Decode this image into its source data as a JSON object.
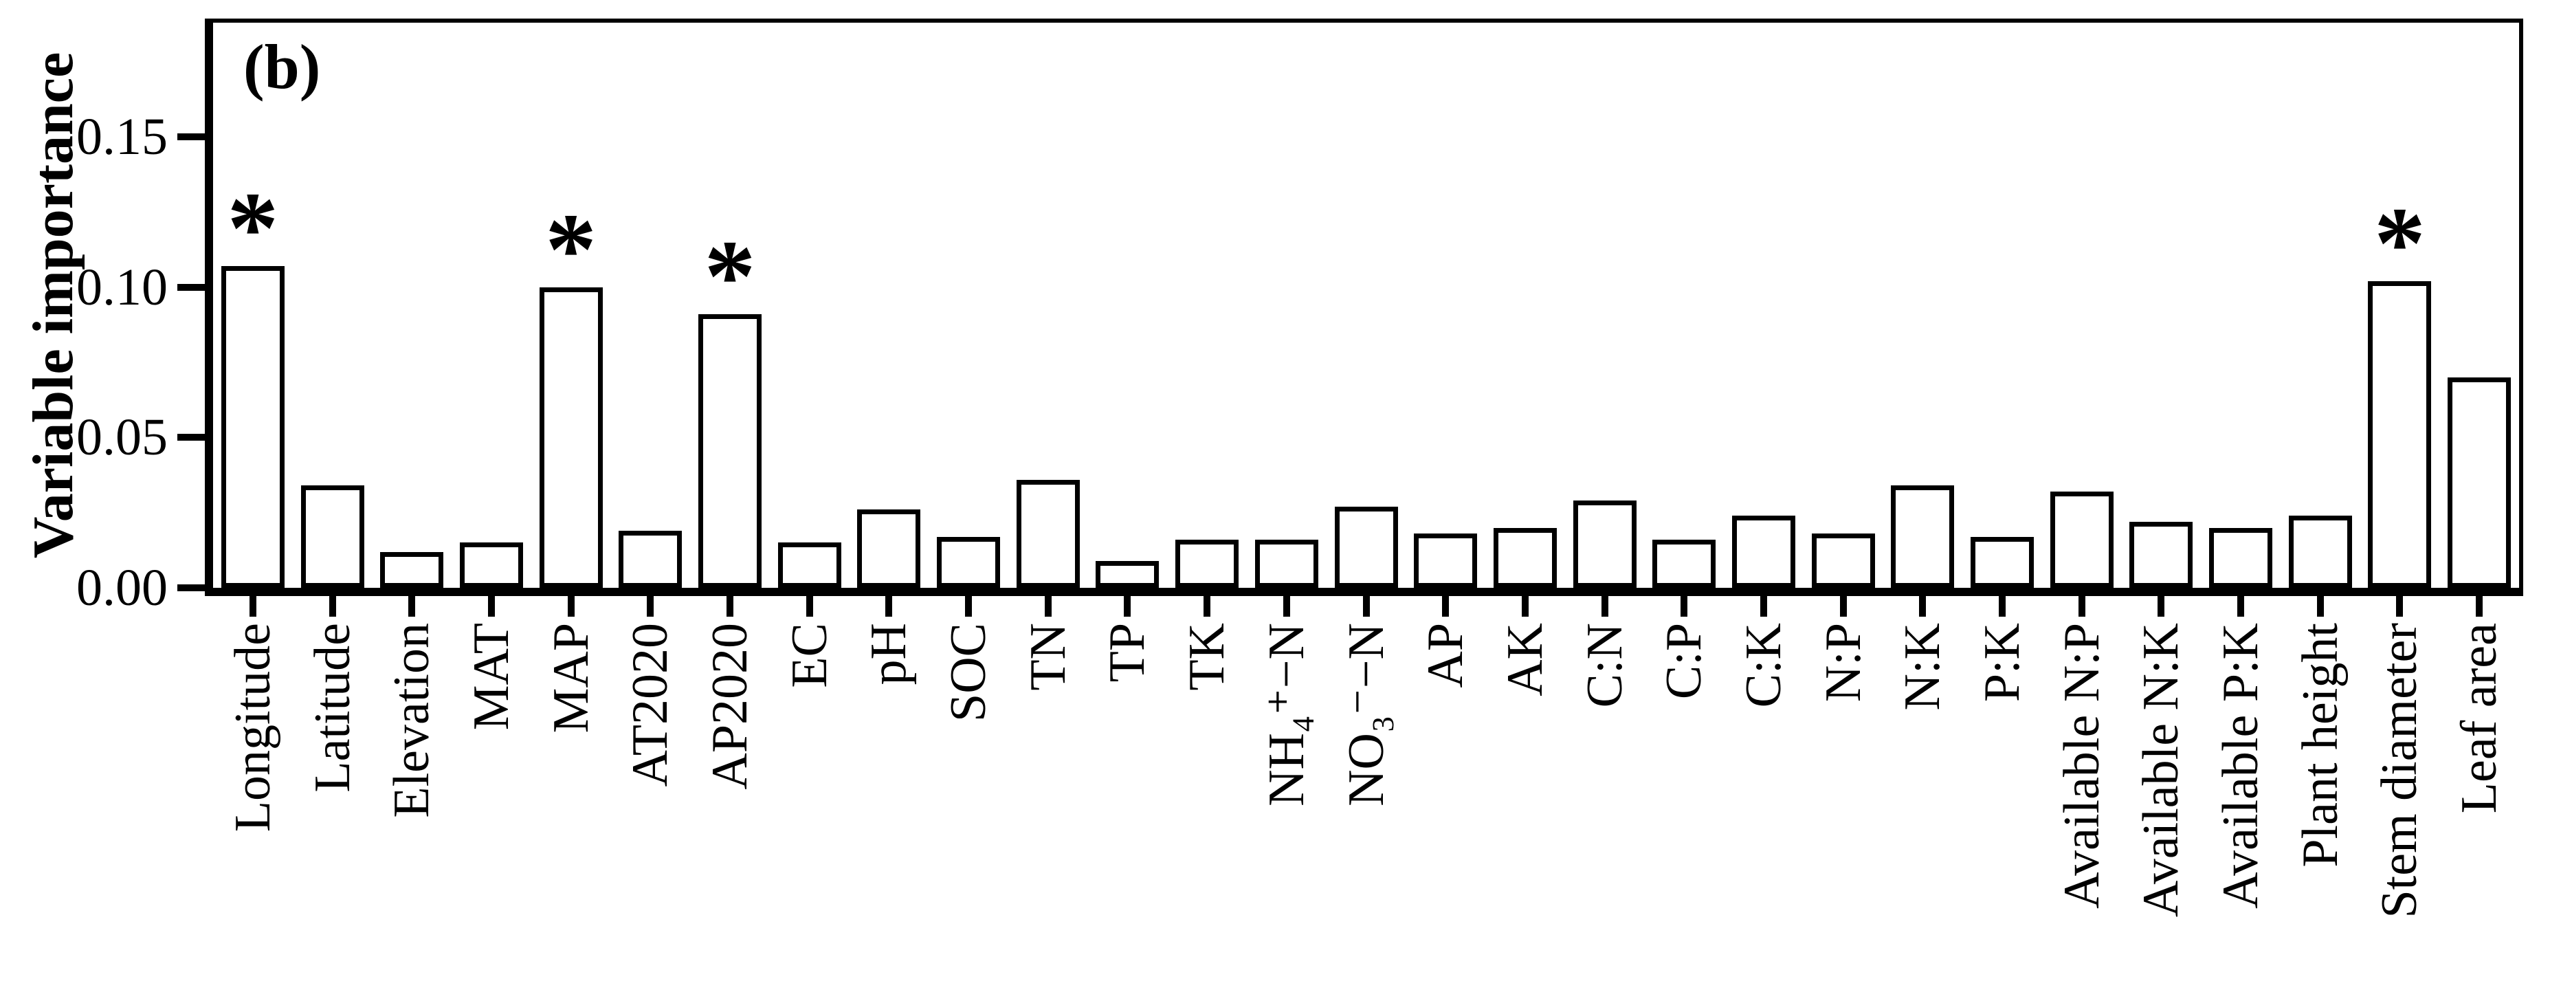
{
  "figure": {
    "panel_label": "(b)",
    "significance_marker": "*",
    "colors": {
      "foreground": "#000000",
      "background": "#ffffff",
      "bar_fill": "#ffffff",
      "bar_stroke": "#000000"
    }
  },
  "chart_data": {
    "type": "bar",
    "title": "",
    "xlabel": "",
    "ylabel": "Variable importance",
    "ylim": [
      0,
      0.188
    ],
    "yticks": [
      0.0,
      0.05,
      0.1,
      0.15
    ],
    "ytick_labels": [
      "0.00",
      "0.05",
      "0.10",
      "0.15"
    ],
    "grid": false,
    "legend": "none",
    "categories": [
      "Longitude",
      "Latitude",
      "Elevation",
      "MAT",
      "MAP",
      "AT2020",
      "AP2020",
      "EC",
      "pH",
      "SOC",
      "TN",
      "TP",
      "TK",
      "NH₄⁺−N",
      "NO₃⁻−N",
      "AP",
      "AK",
      "C:N",
      "C:P",
      "C:K",
      "N:P",
      "N:K",
      "P:K",
      "Available N:P",
      "Available N:K",
      "Available P:K",
      "Plant height",
      "Stem diameter",
      "Leaf area"
    ],
    "values": [
      0.107,
      0.034,
      0.012,
      0.015,
      0.1,
      0.019,
      0.091,
      0.015,
      0.026,
      0.017,
      0.036,
      0.009,
      0.016,
      0.016,
      0.027,
      0.018,
      0.02,
      0.029,
      0.016,
      0.024,
      0.018,
      0.034,
      0.017,
      0.032,
      0.022,
      0.02,
      0.024,
      0.102,
      0.07
    ],
    "significant_categories": [
      "Longitude",
      "MAP",
      "AP2020",
      "Stem diameter"
    ]
  }
}
